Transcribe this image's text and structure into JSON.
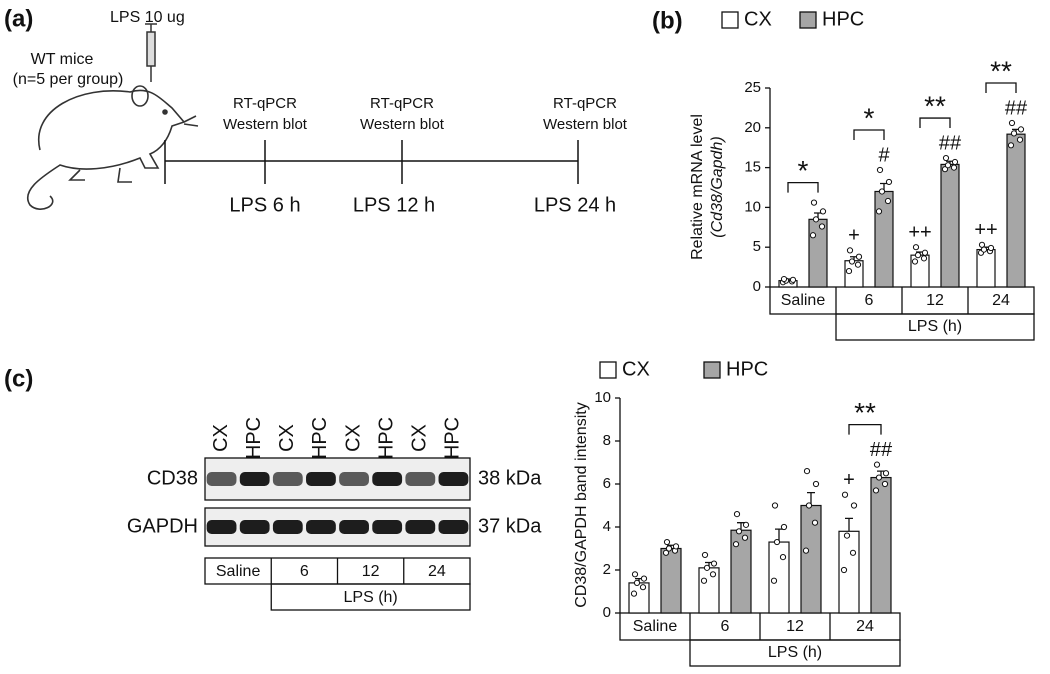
{
  "panel_a": {
    "label": "(a)",
    "subject": [
      "WT mice",
      "(n=5 per group)"
    ],
    "injection": "LPS 10 ug",
    "timepoints": [
      {
        "assay": [
          "RT-qPCR",
          "Western blot"
        ],
        "time": "LPS 6 h"
      },
      {
        "assay": [
          "RT-qPCR",
          "Western blot"
        ],
        "time": "LPS 12 h"
      },
      {
        "assay": [
          "RT-qPCR",
          "Western blot"
        ],
        "time": "LPS 24 h"
      }
    ]
  },
  "blot": {
    "lanes": [
      "CX",
      "HPC",
      "CX",
      "HPC",
      "CX",
      "HPC",
      "CX",
      "HPC"
    ],
    "rows": [
      {
        "name": "CD38",
        "size": "38 kDa"
      },
      {
        "name": "GAPDH",
        "size": "37 kDa"
      }
    ],
    "groups": [
      "Saline",
      "6",
      "12",
      "24"
    ],
    "group_label": "LPS (h)"
  },
  "chart_data": [
    {
      "type": "bar",
      "panel": "(b)",
      "ylabel": "Relative mRNA level",
      "ylabel2": "(Cd38/Gapdh)",
      "categories": [
        "Saline",
        "6",
        "12",
        "24"
      ],
      "group_label": "LPS (h)",
      "ylim": [
        0,
        25
      ],
      "yticks": [
        0,
        5,
        10,
        15,
        20,
        25
      ],
      "series": [
        {
          "name": "CX",
          "color": "#ffffff",
          "values": [
            0.8,
            3.3,
            4.0,
            4.7
          ],
          "errors": [
            0.2,
            0.5,
            0.4,
            0.3
          ],
          "points": [
            [
              0.6,
              0.7,
              0.8,
              0.9,
              1.0
            ],
            [
              2.0,
              2.8,
              3.2,
              3.8,
              4.6
            ],
            [
              3.2,
              3.6,
              4.0,
              4.3,
              5.0
            ],
            [
              4.3,
              4.5,
              4.7,
              4.9,
              5.3
            ]
          ],
          "markers": [
            null,
            "+",
            "++",
            "++"
          ]
        },
        {
          "name": "HPC",
          "color": "#a6a6a6",
          "values": [
            8.5,
            12.0,
            15.4,
            19.2
          ],
          "errors": [
            0.8,
            1.0,
            0.4,
            0.6
          ],
          "points": [
            [
              6.5,
              7.6,
              8.5,
              9.5,
              10.6
            ],
            [
              9.5,
              10.8,
              12.0,
              13.2,
              14.7
            ],
            [
              14.8,
              15.0,
              15.3,
              15.7,
              16.2
            ],
            [
              17.8,
              18.5,
              19.3,
              19.8,
              20.6
            ]
          ],
          "markers": [
            null,
            "#",
            "##",
            "##"
          ]
        }
      ],
      "comparisons": [
        "*",
        "*",
        "**",
        "**"
      ]
    },
    {
      "type": "bar",
      "panel": "(c)",
      "ylabel": "CD38/GAPDH band intensity",
      "categories": [
        "Saline",
        "6",
        "12",
        "24"
      ],
      "group_label": "LPS (h)",
      "ylim": [
        0,
        10
      ],
      "yticks": [
        0,
        2,
        4,
        6,
        8,
        10
      ],
      "series": [
        {
          "name": "CX",
          "color": "#ffffff",
          "values": [
            1.4,
            2.1,
            3.3,
            3.8
          ],
          "errors": [
            0.2,
            0.25,
            0.6,
            0.6
          ],
          "points": [
            [
              0.9,
              1.2,
              1.4,
              1.6,
              1.8
            ],
            [
              1.5,
              1.8,
              2.1,
              2.3,
              2.7
            ],
            [
              1.5,
              2.6,
              3.3,
              4.0,
              5.0
            ],
            [
              2.0,
              2.8,
              3.6,
              5.0,
              5.5
            ]
          ],
          "markers": [
            null,
            null,
            null,
            "+"
          ]
        },
        {
          "name": "HPC",
          "color": "#a6a6a6",
          "values": [
            3.0,
            3.85,
            5.0,
            6.3
          ],
          "errors": [
            0.15,
            0.35,
            0.6,
            0.3
          ],
          "points": [
            [
              2.8,
              2.9,
              3.0,
              3.1,
              3.3
            ],
            [
              3.2,
              3.5,
              3.8,
              4.1,
              4.6
            ],
            [
              2.9,
              4.2,
              5.0,
              6.0,
              6.6
            ],
            [
              5.7,
              6.0,
              6.3,
              6.5,
              6.9
            ]
          ],
          "markers": [
            null,
            null,
            null,
            "##"
          ]
        }
      ],
      "comparisons": [
        null,
        null,
        null,
        "**"
      ]
    }
  ]
}
